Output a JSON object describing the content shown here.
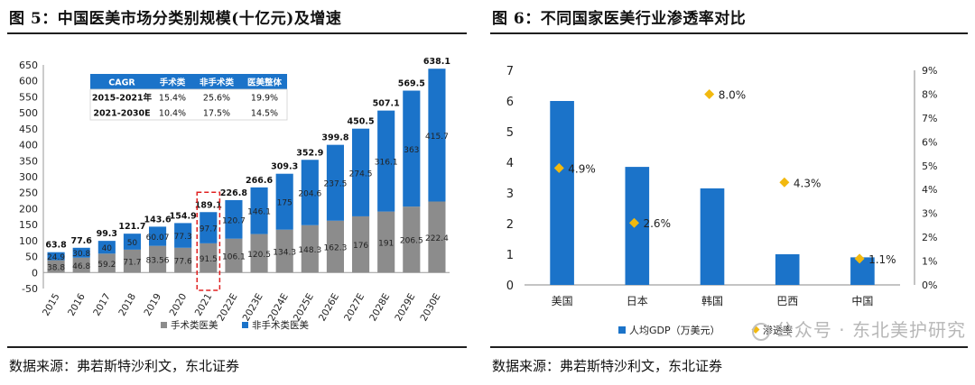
{
  "left": {
    "title": "图 5：中国医美市场分类别规模(十亿元)及增速",
    "source": "数据来源：弗若斯特沙利文，东北证券",
    "chart_data": {
      "type": "bar",
      "stacked": true,
      "categories": [
        "2015",
        "2016",
        "2017",
        "2018",
        "2019",
        "2020",
        "2021",
        "2022E",
        "2023E",
        "2024E",
        "2025E",
        "2026E",
        "2027E",
        "2028E",
        "2029E",
        "2030E"
      ],
      "series": [
        {
          "name": "手术类医美",
          "color": "#8c8c8c",
          "values": [
            38.8,
            46.8,
            59.2,
            71.7,
            83.56,
            77.6,
            91.5,
            106.1,
            120.5,
            134.3,
            148.3,
            162.3,
            176,
            191,
            206.5,
            222.4
          ],
          "labels": [
            "38.8",
            "46.8",
            "59.2",
            "71.7",
            "83.56",
            "77.6",
            "91.5",
            "106.1",
            "120.5",
            "134.3",
            "148.3",
            "162.3",
            "176",
            "191",
            "206.5",
            "222.4"
          ]
        },
        {
          "name": "非手术类医美",
          "color": "#1b73c9",
          "values": [
            24.9,
            30.8,
            40,
            50,
            60.07,
            77.3,
            97.7,
            120.7,
            146.1,
            175,
            204.6,
            237.5,
            274.5,
            316.1,
            363,
            415.7
          ],
          "labels": [
            "24.9",
            "30.8",
            "40",
            "50",
            "60.07",
            "77.3",
            "97.7",
            "120.7",
            "146.1",
            "175",
            "204.6",
            "237.5",
            "274.5",
            "316.1",
            "363",
            "415.7"
          ]
        }
      ],
      "totals": [
        "63.8",
        "77.6",
        "99.3",
        "121.7",
        "143.6",
        "154.9",
        "189.1",
        "226.8",
        "266.6",
        "309.3",
        "352.9",
        "399.8",
        "450.5",
        "507.1",
        "569.5",
        "638.1"
      ],
      "ylim": [
        -50,
        650
      ],
      "yticks": [
        -50,
        0,
        50,
        100,
        150,
        200,
        250,
        300,
        350,
        400,
        450,
        500,
        550,
        600,
        650
      ],
      "highlight_category": "2021",
      "legend": [
        "手术类医美",
        "非手术类医美"
      ],
      "cagr_table": {
        "header": [
          "CAGR",
          "手术类",
          "非手术类",
          "医美整体"
        ],
        "rows": [
          [
            "2015-2021年",
            "15.4%",
            "25.6%",
            "19.9%"
          ],
          [
            "2021-2030E",
            "10.4%",
            "17.5%",
            "14.5%"
          ]
        ]
      }
    }
  },
  "right": {
    "title": "图 6：不同国家医美行业渗透率对比",
    "source": "数据来源：弗若斯特沙利文，东北证券",
    "watermark": "公众号 · 东北美护研究",
    "chart_data": {
      "type": "bar",
      "categories": [
        "美国",
        "日本",
        "韩国",
        "巴西",
        "中国"
      ],
      "series": [
        {
          "name": "人均GDP（万美元）",
          "type": "bar",
          "axis": "left",
          "color": "#1b73c9",
          "values": [
            6.0,
            3.85,
            3.15,
            1.0,
            0.9
          ]
        },
        {
          "name": "渗透率",
          "type": "scatter",
          "axis": "right",
          "color": "#f2b90f",
          "values": [
            4.9,
            2.6,
            8.0,
            4.3,
            1.1
          ],
          "labels": [
            "4.9%",
            "2.6%",
            "8.0%",
            "4.3%",
            "1.1%"
          ]
        }
      ],
      "ylim_left": [
        0,
        7
      ],
      "yticks_left": [
        "0",
        "1",
        "2",
        "3",
        "4",
        "5",
        "6",
        "7"
      ],
      "ylim_right": [
        0,
        9
      ],
      "yticks_right": [
        "0%",
        "1%",
        "2%",
        "3%",
        "4%",
        "5%",
        "6%",
        "7%",
        "8%",
        "9%"
      ],
      "legend": [
        "人均GDP（万美元）",
        "渗透率"
      ]
    }
  }
}
